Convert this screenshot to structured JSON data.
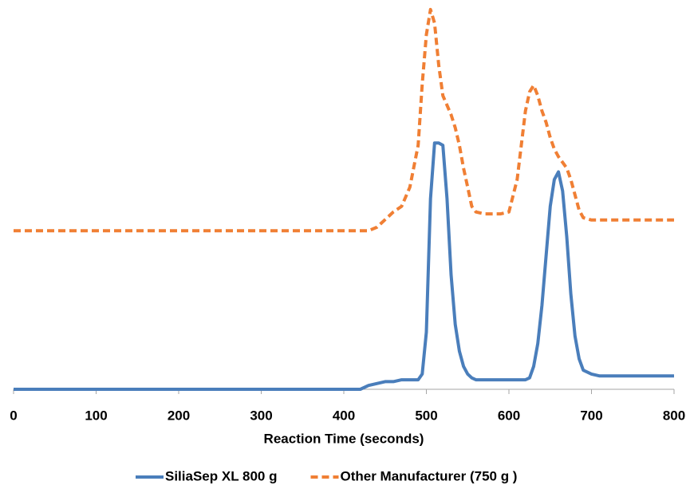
{
  "chart_data": {
    "type": "line",
    "x_label": "Reaction Time (seconds)",
    "x": [
      0,
      100,
      200,
      300,
      400,
      420,
      430,
      440,
      450,
      460,
      470,
      480,
      490,
      495,
      500,
      505,
      510,
      515,
      520,
      525,
      530,
      535,
      540,
      545,
      550,
      555,
      560,
      570,
      580,
      590,
      600,
      610,
      620,
      625,
      630,
      635,
      640,
      645,
      650,
      655,
      660,
      665,
      670,
      675,
      680,
      685,
      690,
      700,
      710,
      750,
      800
    ],
    "series": [
      {
        "name": "SiliaSep XL 800 g",
        "color": "#4a7ebb",
        "dashed": false,
        "values": [
          0,
          0,
          0,
          0,
          0,
          0,
          1,
          1.5,
          2,
          2,
          2.5,
          2.5,
          2.5,
          4,
          15,
          50,
          64.6,
          64.6,
          64,
          50,
          30,
          17,
          10,
          6,
          4,
          3,
          2.5,
          2.5,
          2.5,
          2.5,
          2.5,
          2.5,
          2.5,
          3,
          6,
          12,
          22,
          35,
          48,
          55,
          57,
          52,
          40,
          25,
          14,
          8,
          5,
          4,
          3.5,
          3.5,
          3.5
        ]
      },
      {
        "name": "Other Manufacturer (750 g )",
        "color": "#f07f34",
        "dashed": true,
        "values": [
          41.6,
          41.6,
          41.6,
          41.6,
          41.6,
          41.6,
          41.6,
          42.5,
          44.5,
          46.5,
          48,
          53,
          64,
          80,
          93,
          99.6,
          96,
          85,
          77,
          74.5,
          72,
          68.6,
          64,
          58,
          53,
          48,
          46.5,
          46,
          46,
          46,
          46.5,
          55,
          73,
          78,
          79.7,
          77,
          73,
          70,
          66,
          63,
          61,
          59.5,
          58,
          55,
          51,
          47,
          45,
          44.4,
          44.4,
          44.4,
          44.4
        ]
      }
    ],
    "xlim": [
      0,
      800
    ],
    "xticks": [
      0,
      100,
      200,
      300,
      400,
      500,
      600,
      700,
      800
    ],
    "ylim": [
      0,
      100
    ],
    "legend": "bottom"
  }
}
